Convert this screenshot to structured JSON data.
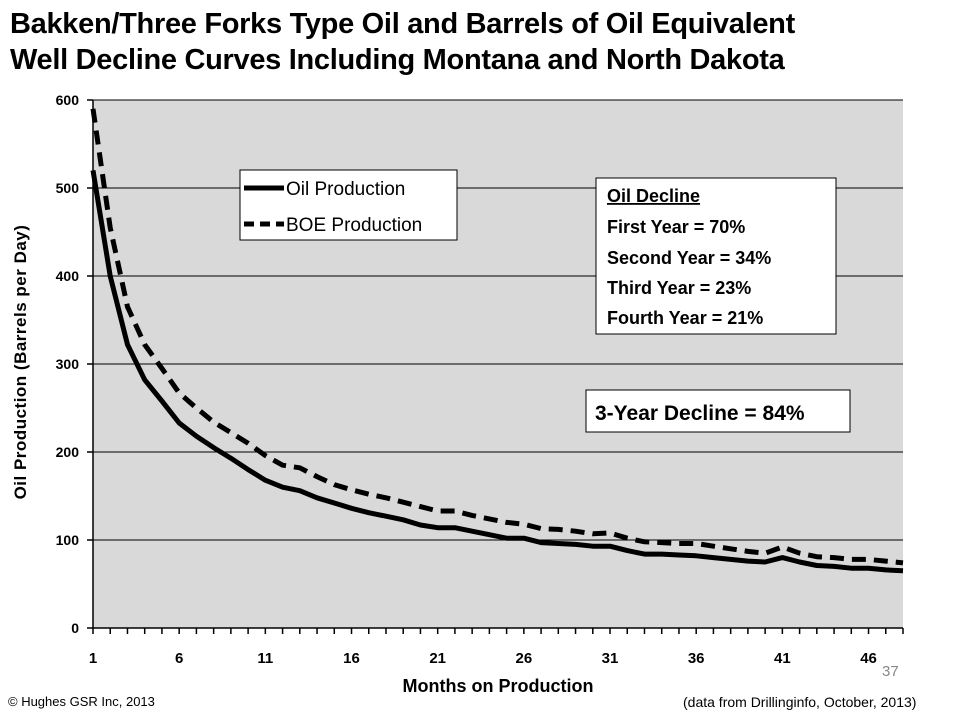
{
  "title_line1": "Bakken/Three Forks Type Oil and Barrels of Oil Equivalent",
  "title_line2": "Well Decline Curves Including Montana and North Dakota",
  "chart_data": {
    "type": "line",
    "title": "Bakken/Three Forks Type Oil and Barrels of Oil Equivalent Well Decline Curves Including Montana and North Dakota",
    "xlabel": "Months on Production",
    "ylabel": "Oil Production (Barrels per Day)",
    "xlim": [
      1,
      48
    ],
    "ylim": [
      0,
      600
    ],
    "xticks": [
      1,
      6,
      11,
      16,
      21,
      26,
      31,
      36,
      41,
      46
    ],
    "yticks": [
      0,
      100,
      200,
      300,
      400,
      500,
      600
    ],
    "grid": "horizontal",
    "legend": "upper-middle",
    "x": [
      1,
      2,
      3,
      4,
      5,
      6,
      7,
      8,
      9,
      10,
      11,
      12,
      13,
      14,
      15,
      16,
      17,
      18,
      19,
      20,
      21,
      22,
      23,
      24,
      25,
      26,
      27,
      28,
      29,
      30,
      31,
      32,
      33,
      34,
      35,
      36,
      37,
      38,
      39,
      40,
      41,
      42,
      43,
      44,
      45,
      46,
      47,
      48
    ],
    "series": [
      {
        "name": "Oil Production",
        "style": "solid",
        "color": "#000000",
        "values": [
          520,
          400,
          322,
          282,
          258,
          233,
          218,
          205,
          193,
          180,
          168,
          160,
          156,
          148,
          142,
          136,
          131,
          127,
          123,
          117,
          114,
          114,
          110,
          106,
          102,
          102,
          97,
          96,
          95,
          93,
          93,
          88,
          84,
          84,
          83,
          82,
          80,
          78,
          76,
          75,
          80,
          75,
          71,
          70,
          68,
          68,
          66,
          65
        ]
      },
      {
        "name": "BOE Production",
        "style": "dashed",
        "color": "#000000",
        "values": [
          590,
          455,
          365,
          322,
          295,
          267,
          250,
          234,
          222,
          210,
          196,
          185,
          182,
          172,
          163,
          157,
          152,
          148,
          143,
          138,
          133,
          133,
          128,
          124,
          120,
          118,
          113,
          112,
          110,
          107,
          108,
          102,
          98,
          97,
          96,
          96,
          93,
          90,
          87,
          85,
          92,
          85,
          81,
          80,
          78,
          78,
          76,
          74
        ]
      }
    ],
    "annotations": {
      "oil_decline": {
        "heading": "Oil Decline",
        "lines": [
          "First Year = 70%",
          "Second Year = 34%",
          "Third Year = 23%",
          "Fourth Year = 21%"
        ]
      },
      "three_year": "3-Year Decline = 84%"
    }
  },
  "footer": {
    "copyright": "© Hughes GSR Inc, 2013",
    "source": "(data from  Drillinginfo, October, 2013)",
    "slide_number": "37"
  }
}
